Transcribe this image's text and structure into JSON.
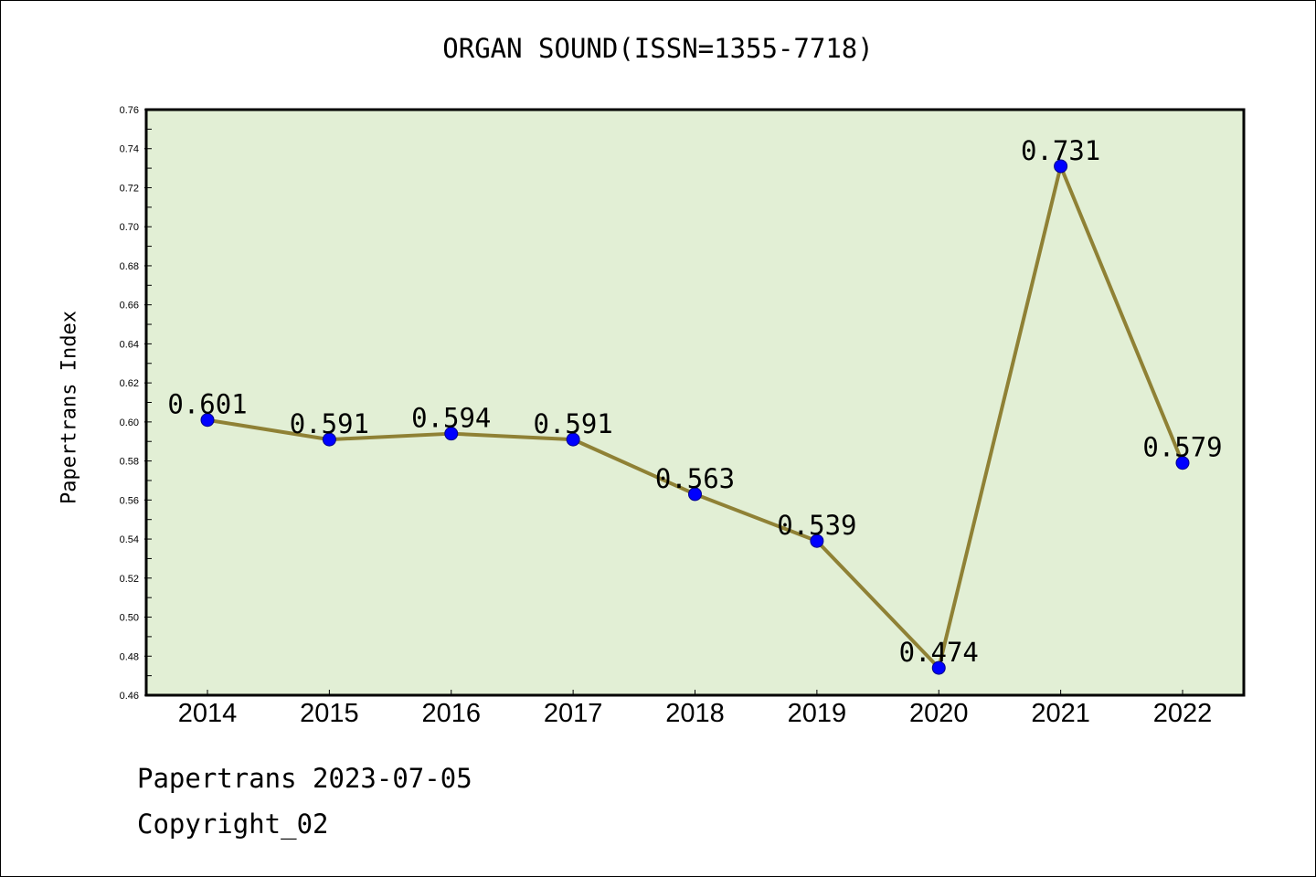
{
  "chart_data": {
    "type": "line",
    "title": "ORGAN SOUND(ISSN=1355-7718)",
    "xlabel": "",
    "ylabel": "Papertrans Index",
    "categories": [
      "2014",
      "2015",
      "2016",
      "2017",
      "2018",
      "2019",
      "2020",
      "2021",
      "2022"
    ],
    "values": [
      0.601,
      0.591,
      0.594,
      0.591,
      0.563,
      0.539,
      0.474,
      0.731,
      0.579
    ],
    "data_labels": [
      "0.601",
      "0.591",
      "0.594",
      "0.591",
      "0.563",
      "0.539",
      "0.474",
      "0.731",
      "0.579"
    ],
    "ylim": [
      0.46,
      0.76
    ],
    "yticks": [
      0.46,
      0.48,
      0.5,
      0.52,
      0.54,
      0.56,
      0.58,
      0.6,
      0.62,
      0.64,
      0.66,
      0.68,
      0.7,
      0.72,
      0.74,
      0.76
    ],
    "ytick_labels": [
      "0.46",
      "0.48",
      "0.50",
      "0.52",
      "0.54",
      "0.56",
      "0.58",
      "0.60",
      "0.62",
      "0.64",
      "0.66",
      "0.68",
      "0.70",
      "0.72",
      "0.74",
      "0.76"
    ],
    "grid": false,
    "colors": {
      "plot_background": "#e2efd5",
      "line": "#8f8135",
      "marker": "#0000ff",
      "frame": "#000000"
    }
  },
  "footer": {
    "date_line": "Papertrans 2023-07-05",
    "copyright": "Copyright_02"
  }
}
